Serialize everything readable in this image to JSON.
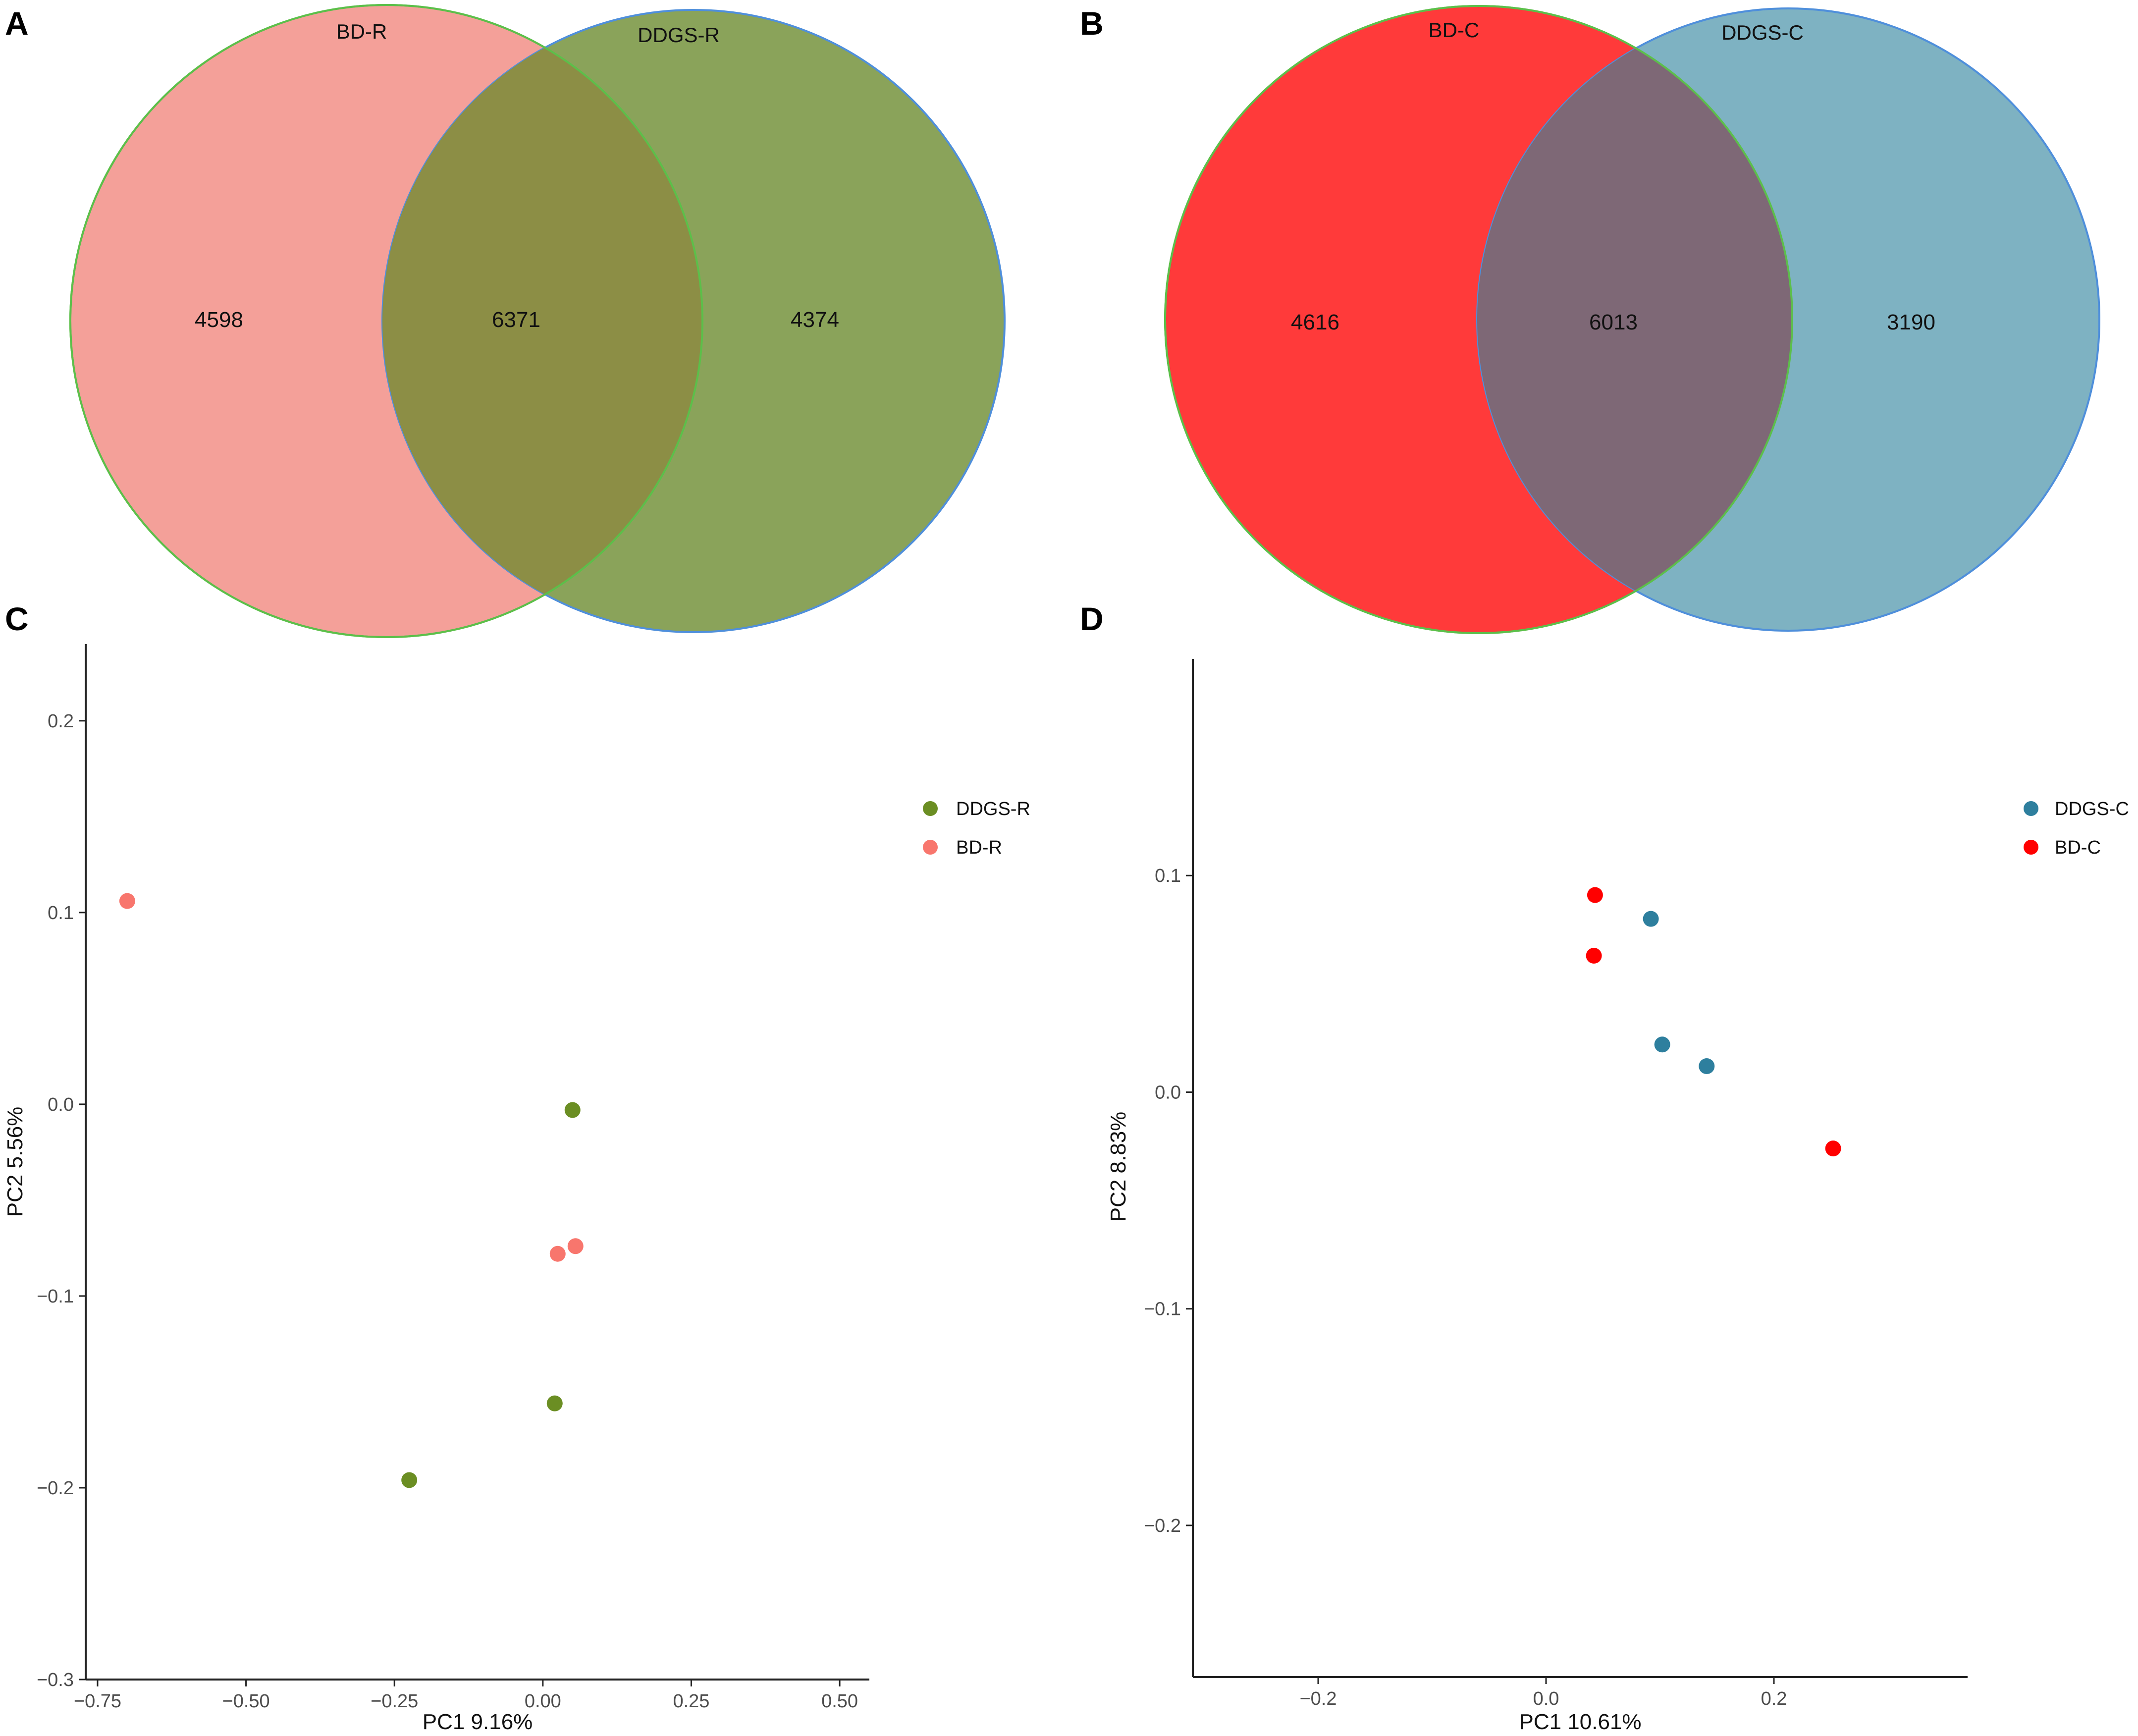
{
  "panels": {
    "A": {
      "letter": "A"
    },
    "B": {
      "letter": "B"
    },
    "C": {
      "letter": "C"
    },
    "D": {
      "letter": "D"
    }
  },
  "colors": {
    "bd_r": "#F8766D",
    "ddgs_r": "#6B8E23",
    "bd_c": "#FF0000",
    "ddgs_c": "#2E7F9E",
    "venn_a_left_fill": "#F4A099",
    "venn_a_right_fill": "#8AA35A",
    "venn_a_overlap_fill": "#8C8E45",
    "venn_b_left_fill": "#FF3A3A",
    "venn_b_right_fill": "#7EB2C2",
    "venn_b_overlap_fill": "#7E6876",
    "left_outline": "#5CBF4A",
    "right_outline": "#4F8FDB"
  },
  "chart_data": [
    {
      "id": "A",
      "type": "venn",
      "sets": [
        {
          "name": "BD-R",
          "only": 4598
        },
        {
          "name": "DDGS-R",
          "only": 4374
        }
      ],
      "intersection": 6371
    },
    {
      "id": "B",
      "type": "venn",
      "sets": [
        {
          "name": "BD-C",
          "only": 4616
        },
        {
          "name": "DDGS-C",
          "only": 3190
        }
      ],
      "intersection": 6013
    },
    {
      "id": "C",
      "type": "scatter",
      "xlabel": "PC1 9.16%",
      "ylabel": "PC2 5.56%",
      "xlim": [
        -0.77,
        0.55
      ],
      "ylim": [
        -0.3,
        0.24
      ],
      "xticks": [
        -0.75,
        -0.5,
        -0.25,
        0.0,
        0.25,
        0.5
      ],
      "xtick_labels": [
        "−0.75",
        "−0.50",
        "−0.25",
        "0.00",
        "0.25",
        "0.50"
      ],
      "yticks": [
        -0.3,
        -0.2,
        -0.1,
        0.0,
        0.1,
        0.2
      ],
      "ytick_labels": [
        "−0.3",
        "−0.2",
        "−0.1",
        "0.0",
        "0.1",
        "0.2"
      ],
      "series": [
        {
          "name": "DDGS-R",
          "color_key": "ddgs_r",
          "points": [
            [
              0.05,
              -0.003
            ],
            [
              0.02,
              -0.156
            ],
            [
              -0.225,
              -0.196
            ]
          ]
        },
        {
          "name": "BD-R",
          "color_key": "bd_r",
          "points": [
            [
              -0.7,
              0.106
            ],
            [
              0.025,
              -0.078
            ],
            [
              0.055,
              -0.074
            ]
          ]
        }
      ],
      "legend": [
        "DDGS-R",
        "BD-R"
      ],
      "legend_position": "right"
    },
    {
      "id": "D",
      "type": "scatter",
      "xlabel": "PC1 10.61%",
      "ylabel": "PC2 8.83%",
      "xlim": [
        -0.31,
        0.37
      ],
      "ylim": [
        -0.27,
        0.2
      ],
      "xticks": [
        -0.2,
        0.0,
        0.2
      ],
      "xtick_labels": [
        "−0.2",
        "0.0",
        "0.2"
      ],
      "yticks": [
        -0.2,
        -0.1,
        0.0,
        0.1
      ],
      "ytick_labels": [
        "−0.2",
        "−0.1",
        "0.0",
        "0.1"
      ],
      "series": [
        {
          "name": "DDGS-C",
          "color_key": "ddgs_c",
          "points": [
            [
              0.092,
              0.08
            ],
            [
              0.102,
              0.022
            ],
            [
              0.141,
              0.012
            ]
          ]
        },
        {
          "name": "BD-C",
          "color_key": "bd_c",
          "points": [
            [
              0.043,
              0.091
            ],
            [
              0.042,
              0.063
            ],
            [
              0.252,
              -0.026
            ]
          ]
        }
      ],
      "legend": [
        "DDGS-C",
        "BD-C"
      ],
      "legend_position": "right"
    }
  ]
}
